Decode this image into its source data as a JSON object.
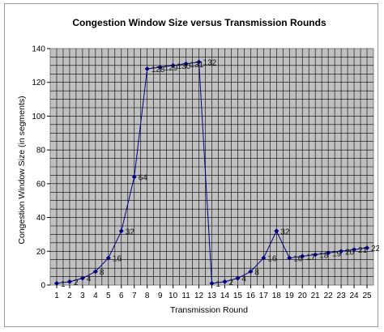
{
  "chart_data": {
    "type": "line",
    "title": "Congestion Window Size versus Transmission Rounds",
    "xlabel": "Transmission Round",
    "ylabel": "Congestion Window Size (in segments)",
    "x": [
      1,
      2,
      3,
      4,
      5,
      6,
      7,
      8,
      9,
      10,
      11,
      12,
      13,
      14,
      15,
      16,
      17,
      18,
      19,
      20,
      21,
      22,
      23,
      24,
      25
    ],
    "xlim": [
      1,
      25
    ],
    "ylim": [
      0,
      140
    ],
    "yticks": [
      0,
      20,
      40,
      60,
      80,
      100,
      120,
      140
    ],
    "grid": true,
    "legend": "none",
    "series": [
      {
        "values": [
          1,
          2,
          4,
          8,
          16,
          32,
          64,
          128,
          129,
          130,
          131,
          132,
          1,
          2,
          4,
          8,
          16,
          32,
          16,
          17,
          18,
          19,
          20,
          21,
          22
        ],
        "labels": [
          "1",
          "2",
          "4",
          "8",
          "16",
          "32",
          "64",
          "128",
          "129",
          "130",
          "131",
          "132",
          "1",
          "2",
          "4",
          "8",
          "16",
          "32",
          "16",
          "17",
          "18",
          "19",
          "20",
          "21",
          "22"
        ],
        "color": "#000080"
      }
    ]
  }
}
